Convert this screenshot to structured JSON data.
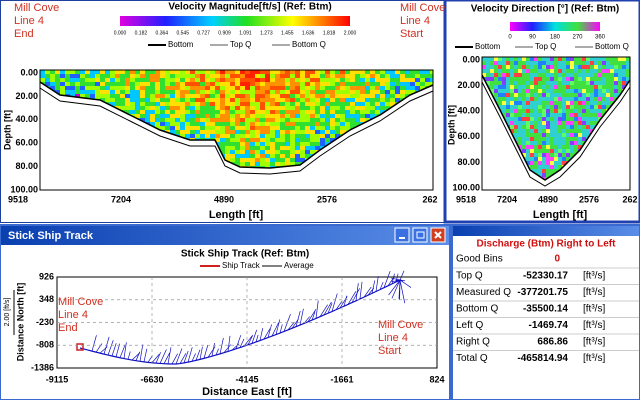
{
  "magnitude": {
    "title": "Velocity Magnitude[ft/s] (Ref: Btm)",
    "colorbar": [
      "0.000",
      "0.182",
      "0.364",
      "0.545",
      "0.727",
      "0.909",
      "1.091",
      "1.273",
      "1.455",
      "1.636",
      "1.818",
      "2.000"
    ],
    "legend": [
      "Bottom",
      "Top Q",
      "Bottom Q"
    ],
    "y_label": "Depth [ft]",
    "yticks": [
      "0.00",
      "20.00",
      "40.00",
      "60.00",
      "80.00",
      "100.00"
    ],
    "x_label": "Length [ft]",
    "xticks": [
      "9518",
      "7204",
      "4890",
      "2576",
      "262"
    ],
    "left_note": [
      "Mill Cove",
      "Line 4",
      "End"
    ],
    "right_note": [
      "Mill Cove",
      "Line 4",
      "Start"
    ]
  },
  "direction": {
    "title": "Velocity Direction [°] (Ref: Btm)",
    "colorbar": [
      "0",
      "90",
      "180",
      "270",
      "360"
    ],
    "legend": [
      "Bottom",
      "Top Q",
      "Bottom Q"
    ],
    "y_label": "Depth [ft]",
    "yticks": [
      "0.00",
      "20.00",
      "40.00",
      "60.00",
      "80.00",
      "100.00"
    ],
    "x_label": "Length [ft]",
    "xticks": [
      "9518",
      "7204",
      "4890",
      "2576",
      "262"
    ]
  },
  "track": {
    "window_title": "Stick Ship Track",
    "title": "Stick Ship Track (Ref: Btm)",
    "legend": [
      "Ship Track",
      "Average"
    ],
    "scale": "2.00 [ft/s]",
    "y_label": "Distance North [ft]",
    "yticks": [
      "926",
      "348",
      "-230",
      "-808",
      "-1386"
    ],
    "x_label": "Distance East [ft]",
    "xticks": [
      "-9115",
      "-6630",
      "-4145",
      "-1661",
      "824"
    ],
    "left_note": [
      "Mill Cove",
      "Line 4",
      "End"
    ],
    "right_note": [
      "Mill Cove",
      "Line 4",
      "Start"
    ]
  },
  "discharge": {
    "title": "Discharge (Btm) Right to Left",
    "good_bins": {
      "label": "Good Bins",
      "value": "0"
    },
    "rows": [
      {
        "label": "Top Q",
        "value": "-52330.17",
        "unit": "[ft³/s]"
      },
      {
        "label": "Measured Q",
        "value": "-377201.75",
        "unit": "[ft³/s]"
      },
      {
        "label": "Bottom Q",
        "value": "-35500.14",
        "unit": "[ft³/s]"
      },
      {
        "label": "Left Q",
        "value": "-1469.74",
        "unit": "[ft³/s]"
      },
      {
        "label": "Right Q",
        "value": "686.86",
        "unit": "[ft³/s]"
      },
      {
        "label": "Total Q",
        "value": "-465814.94",
        "unit": "[ft³/s]"
      }
    ]
  }
}
